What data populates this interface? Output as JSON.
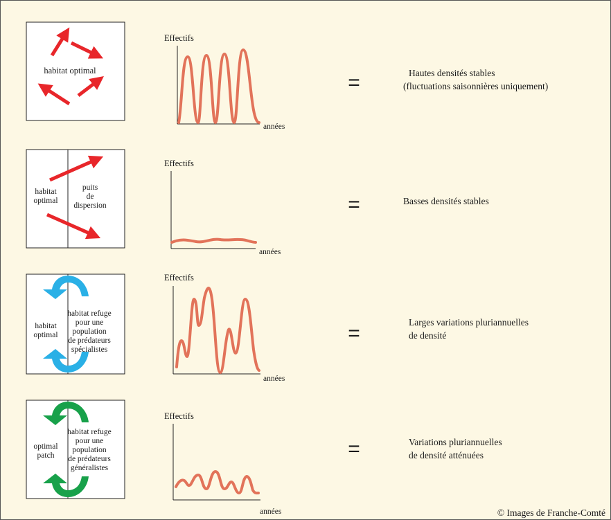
{
  "credit": "© Images de Franche-Comté",
  "colors": {
    "background": "#fdf8e4",
    "curve": "#e2735a",
    "arrow_red": "#e8262a",
    "arrow_blue": "#2ab0e6",
    "arrow_green": "#18a14a"
  },
  "rows": [
    {
      "panel_labels": [
        "habitat optimal"
      ],
      "ylabel": "Effectifs",
      "xlabel": "années",
      "equals": "=",
      "result_lines": [
        "Hautes densités stables",
        "(fluctuations saisonnières uniquement)"
      ]
    },
    {
      "panel_labels": [
        "habitat",
        "optimal",
        "puits",
        "de",
        "dispersion"
      ],
      "ylabel": "Effectifs",
      "xlabel": "années",
      "equals": "=",
      "result_lines": [
        "Basses densités stables"
      ]
    },
    {
      "panel_labels": [
        "habitat",
        "optimal",
        "habitat refuge",
        "pour une",
        "population",
        "de prédateurs",
        "spécialistes"
      ],
      "ylabel": "Effectifs",
      "xlabel": "années",
      "equals": "=",
      "result_lines": [
        "Larges variations pluriannuelles",
        "de densité"
      ]
    },
    {
      "panel_labels": [
        "optimal",
        "patch",
        "habitat refuge",
        "pour une",
        "population",
        "de prédateurs",
        "généralistes"
      ],
      "ylabel": "Effectifs",
      "xlabel": "années",
      "equals": "=",
      "result_lines": [
        "Variations pluriannuelles",
        "de densité atténuées"
      ]
    }
  ]
}
